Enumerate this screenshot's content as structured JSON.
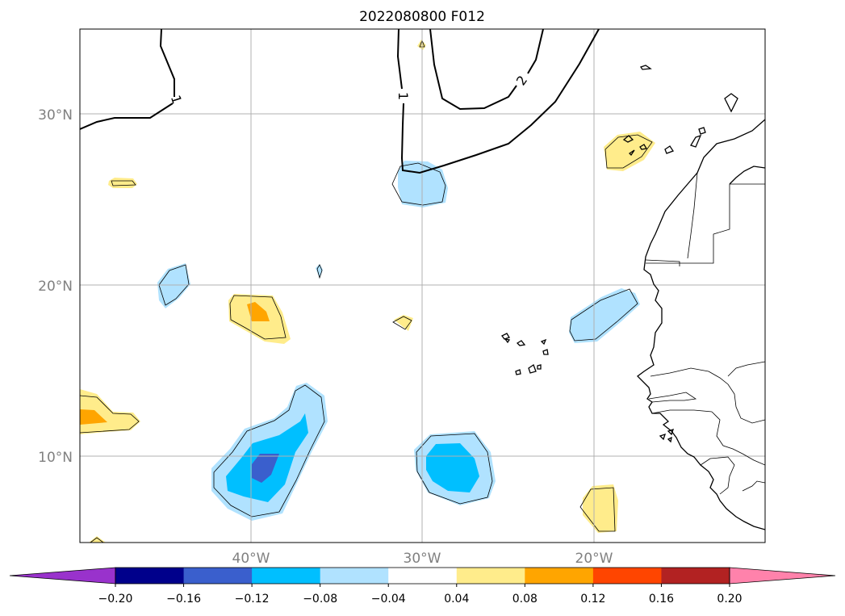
{
  "title": "2022080800 F012",
  "lat_labels": [
    "30°N",
    "20°N",
    "10°N"
  ],
  "lon_labels": [
    "40°W",
    "30°W",
    "20°W"
  ],
  "isoline_labels": [
    "1",
    "1",
    "2"
  ],
  "colorbar": {
    "tick_labels": [
      "−0.20",
      "−0.16",
      "−0.12",
      "−0.08",
      "−0.04",
      "0.04",
      "0.08",
      "0.12",
      "0.16",
      "0.20"
    ],
    "colors": [
      "#9932cc",
      "#00008b",
      "#3a5fcd",
      "#00bfff",
      "#b0e2ff",
      "#ffffff",
      "#ffec8b",
      "#ffa500",
      "#ff4500",
      "#b22222",
      "#ff82ab"
    ],
    "extend": "both"
  },
  "colors": {
    "light_blue": "#b0e2ff",
    "deep_sky_blue": "#00bfff",
    "royal_blue": "#3a5fcd",
    "light_yellow": "#ffec8b",
    "orange": "#ffa500"
  }
}
